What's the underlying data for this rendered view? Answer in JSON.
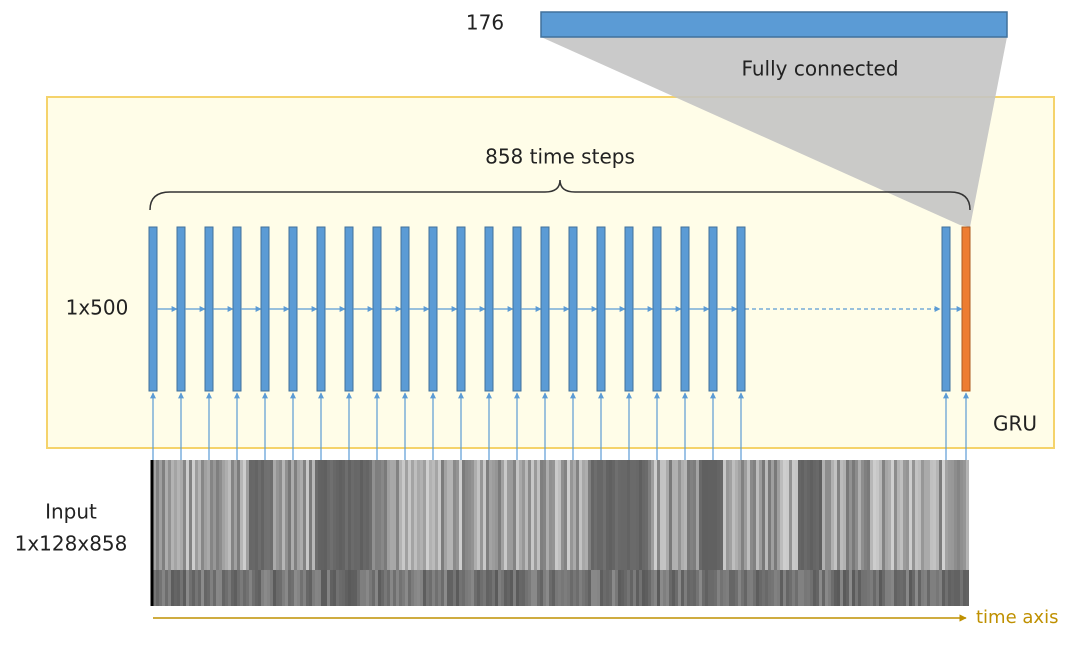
{
  "output": {
    "size": "176",
    "label": "Fully connected"
  },
  "gru": {
    "steps_label": "858 time steps",
    "hidden_label": "1x500",
    "name": "GRU"
  },
  "input": {
    "title": "Input",
    "shape": "1x128x858",
    "axis_label": "time axis"
  }
}
